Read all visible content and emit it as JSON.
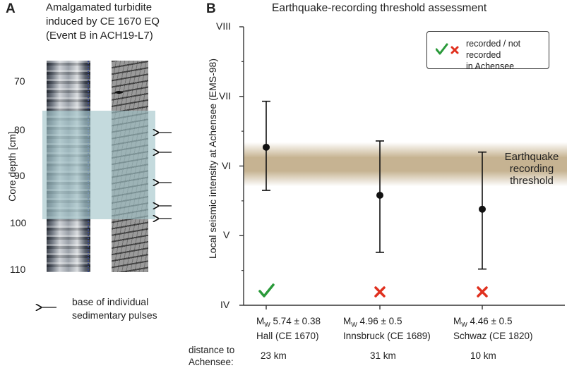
{
  "panel_a": {
    "letter": "A",
    "title_lines": [
      "Amalgamated turbidite",
      "induced by CE 1670 EQ",
      "(Event B in ACH19-L7)"
    ],
    "ylabel": "Core depth [cm]",
    "depth_ticks": [
      "70",
      "80",
      "90",
      "100",
      "110"
    ],
    "legend_lines": [
      "base of individual",
      "sedimentary pulses"
    ],
    "arrow_depths_cm": [
      81.5,
      85,
      91.5,
      96.5,
      99
    ]
  },
  "panel_b": {
    "letter": "B",
    "title": "Earthquake-recording threshold assessment",
    "legend_lines": [
      "recorded / not recorded",
      "in Achensee"
    ],
    "distance_label_lines": [
      "distance to",
      "Achensee:"
    ],
    "colors": {
      "recorded": "#2a9a3a",
      "not_recorded": "#e0301e",
      "band": "#b39a6d"
    }
  },
  "chart_data": {
    "type": "scatter",
    "title": "Earthquake-recording threshold assessment",
    "ylabel": "Local seismic intensity at Achensee (EMS-98)",
    "ylim": [
      4,
      8
    ],
    "yticks": [
      "IV",
      "V",
      "VI",
      "VII",
      "VIII"
    ],
    "threshold_label_lines": [
      "Earthquake",
      "recording",
      "threshold"
    ],
    "threshold_range": [
      5.85,
      6.2
    ],
    "events": [
      {
        "mag_prefix": "M",
        "mag_sub": "W",
        "mag_value": " 5.74 ± 0.38",
        "name": "Hall (CE 1670)",
        "distance": "23 km",
        "y": 6.27,
        "low": 5.65,
        "high": 6.93,
        "recorded": true
      },
      {
        "mag_prefix": "M",
        "mag_sub": "W",
        "mag_value": " 4.96 ± 0.5",
        "name": "Innsbruck (CE 1689)",
        "distance": "31 km",
        "y": 5.58,
        "low": 4.76,
        "high": 6.36,
        "recorded": false
      },
      {
        "mag_prefix": "M",
        "mag_sub": "W",
        "mag_value": " 4.46 ± 0.5",
        "name": "Schwaz (CE 1820)",
        "distance": "10 km",
        "y": 5.38,
        "low": 4.52,
        "high": 6.2,
        "recorded": false
      }
    ]
  }
}
